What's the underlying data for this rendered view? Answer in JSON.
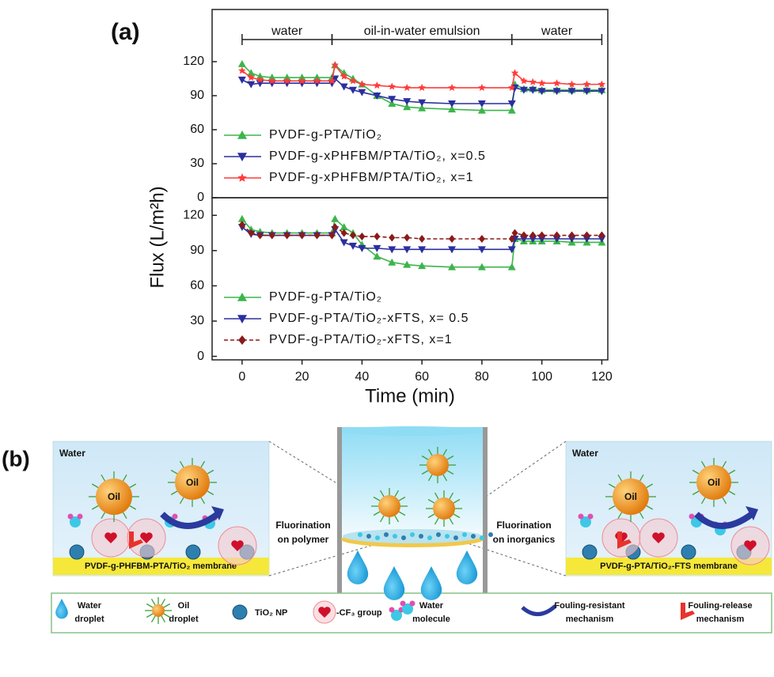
{
  "labels": {
    "a": "(a)",
    "b": "(b)"
  },
  "chart_data": [
    {
      "type": "line",
      "ylabel": "Flux (L/m²h)",
      "annotations": [
        {
          "text": "water",
          "start": 0,
          "end": 30
        },
        {
          "text": "oil-in-water emulsion",
          "start": 30,
          "end": 90
        },
        {
          "text": "water",
          "start": 90,
          "end": 120
        }
      ],
      "x": [
        0,
        3,
        6,
        10,
        15,
        20,
        25,
        30,
        31,
        34,
        37,
        40,
        45,
        50,
        55,
        60,
        70,
        80,
        90,
        91,
        94,
        97,
        100,
        105,
        110,
        115,
        120
      ],
      "xlim": [
        -10,
        122
      ],
      "ylim": [
        0,
        166
      ],
      "yticks": [
        0,
        30,
        60,
        90,
        120
      ],
      "legend": "lower left",
      "series": [
        {
          "name": "PVDF-g-PTA/TiO₂",
          "color": "#3cb54a",
          "marker": "triangle-up",
          "values": [
            118,
            110,
            107,
            106,
            106,
            106,
            106,
            106,
            117,
            110,
            105,
            100,
            90,
            83,
            80,
            79,
            78,
            77,
            77,
            100,
            96,
            96,
            95,
            95,
            95,
            95,
            95
          ]
        },
        {
          "name": "PVDF-g-xPHFBM/PTA/TiO₂, x=0.5",
          "color": "#2b2f9e",
          "marker": "triangle-down",
          "values": [
            104,
            100,
            101,
            101,
            101,
            101,
            101,
            101,
            105,
            98,
            95,
            93,
            90,
            87,
            85,
            84,
            83,
            83,
            83,
            97,
            95,
            95,
            94,
            94,
            94,
            94,
            94
          ]
        },
        {
          "name": "PVDF-g-xPHFBM/PTA/TiO₂, x=1",
          "color": "#ff3b3b",
          "marker": "star",
          "values": [
            112,
            106,
            104,
            103,
            103,
            103,
            103,
            103,
            117,
            107,
            103,
            100,
            99,
            98,
            97,
            97,
            97,
            97,
            97,
            110,
            103,
            102,
            101,
            101,
            100,
            100,
            100
          ]
        }
      ]
    },
    {
      "type": "line",
      "xlabel": "Time (min)",
      "x": [
        0,
        3,
        6,
        10,
        15,
        20,
        25,
        30,
        31,
        34,
        37,
        40,
        45,
        50,
        55,
        60,
        70,
        80,
        90,
        91,
        94,
        97,
        100,
        105,
        110,
        115,
        120
      ],
      "xlim": [
        -10,
        122
      ],
      "xticks": [
        0,
        20,
        40,
        60,
        80,
        100,
        120
      ],
      "ylim": [
        -3,
        135
      ],
      "yticks": [
        0,
        30,
        60,
        90,
        120
      ],
      "legend": "lower left",
      "series": [
        {
          "name": "PVDF-g-PTA/TiO₂",
          "color": "#3cb54a",
          "marker": "triangle-up",
          "values": [
            117,
            108,
            106,
            105,
            105,
            105,
            105,
            105,
            117,
            110,
            105,
            95,
            85,
            80,
            78,
            77,
            76,
            76,
            76,
            100,
            98,
            98,
            98,
            98,
            97,
            97,
            97
          ]
        },
        {
          "name": "PVDF-g-PTA/TiO₂-xFTS, x= 0.5",
          "color": "#2b2f9e",
          "marker": "triangle-down",
          "values": [
            110,
            104,
            103,
            103,
            103,
            103,
            103,
            103,
            108,
            97,
            94,
            92,
            92,
            91,
            91,
            91,
            91,
            91,
            91,
            100,
            100,
            100,
            100,
            100,
            100,
            100,
            100
          ]
        },
        {
          "name": "PVDF-g-PTA/TiO₂-xFTS, x=1",
          "color": "#8b1a1a",
          "marker": "diamond",
          "dash": true,
          "values": [
            112,
            105,
            103,
            103,
            103,
            103,
            103,
            103,
            110,
            105,
            103,
            102,
            102,
            101,
            101,
            100,
            100,
            100,
            100,
            105,
            103,
            103,
            103,
            103,
            103,
            103,
            103
          ]
        }
      ]
    }
  ],
  "diagram": {
    "left": {
      "medium": "Water",
      "oil": [
        "Oil",
        "Oil"
      ],
      "membrane": "PVDF-g-PHFBM-PTA/TiO₂ membrane"
    },
    "center": {
      "left_note": [
        "Fluorination",
        "on polymer"
      ],
      "right_note": [
        "Fluorination",
        "on inorganics"
      ]
    },
    "right": {
      "medium": "Water",
      "oil": [
        "Oil",
        "Oil"
      ],
      "membrane": "PVDF-g-PTA/TiO₂-FTS membrane"
    },
    "legend": [
      [
        "Water",
        "droplet"
      ],
      [
        "Oil",
        "droplet"
      ],
      [
        "TiO₂ NP"
      ],
      [
        "-CF₃ group"
      ],
      [
        "Water",
        "molecule"
      ],
      [
        "Fouling-resistant",
        "mechanism"
      ],
      [
        "Fouling-release",
        "mechanism"
      ]
    ]
  }
}
